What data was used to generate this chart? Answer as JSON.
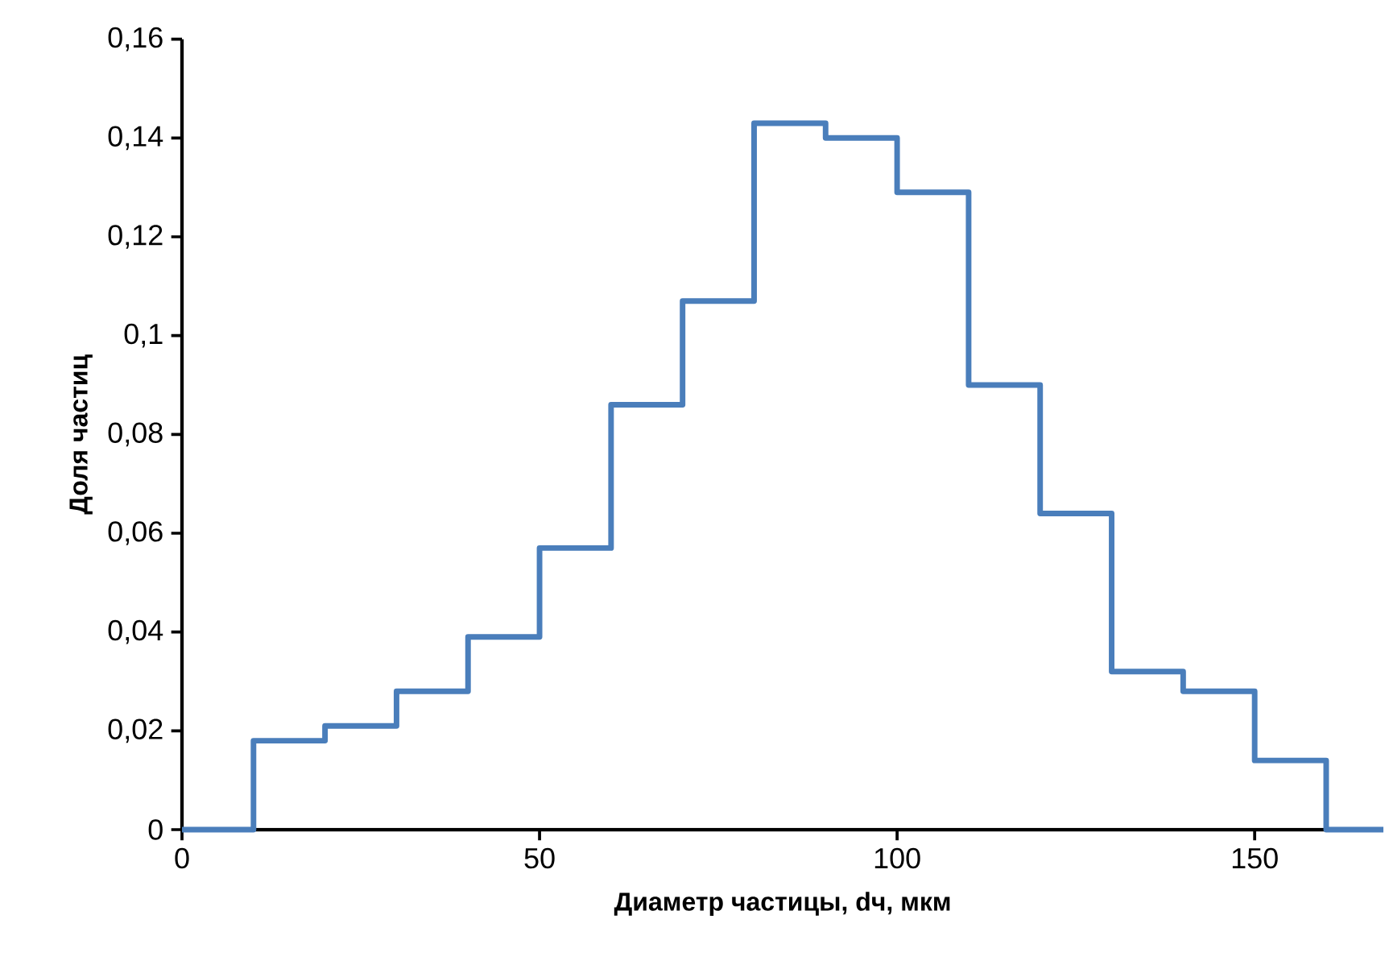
{
  "chart_data": {
    "type": "step",
    "xlabel": "Диаметр частицы,  dч, мкм",
    "ylabel": "Доля частиц",
    "x": [
      0,
      10,
      20,
      30,
      40,
      50,
      60,
      70,
      80,
      90,
      100,
      110,
      120,
      130,
      140,
      150,
      160,
      168
    ],
    "series": [
      {
        "color": "#4a7ebb",
        "values": [
          0,
          0.018,
          0.021,
          0.028,
          0.039,
          0.057,
          0.086,
          0.107,
          0.143,
          0.14,
          0.129,
          0.09,
          0.064,
          0.032,
          0.028,
          0.014,
          0,
          0
        ]
      }
    ],
    "xlim": [
      0,
      168
    ],
    "ylim": [
      0,
      0.16
    ],
    "xticks": [
      0,
      50,
      100,
      150
    ],
    "yticks": [
      0,
      {
        "value": 0.02,
        "label": "0,02"
      },
      {
        "value": 0.04,
        "label": "0,04"
      },
      {
        "value": 0.06,
        "label": "0,06"
      },
      {
        "value": 0.08,
        "label": "0,08"
      },
      {
        "value": 0.1,
        "label": "0,1"
      },
      {
        "value": 0.12,
        "label": "0,12"
      },
      {
        "value": 0.14,
        "label": "0,14"
      },
      {
        "value": 0.16,
        "label": "0,16"
      }
    ]
  }
}
